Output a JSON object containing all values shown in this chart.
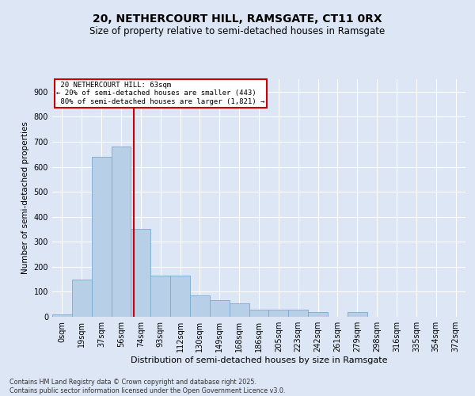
{
  "title1": "20, NETHERCOURT HILL, RAMSGATE, CT11 0RX",
  "title2": "Size of property relative to semi-detached houses in Ramsgate",
  "xlabel": "Distribution of semi-detached houses by size in Ramsgate",
  "ylabel": "Number of semi-detached properties",
  "footnote": "Contains HM Land Registry data © Crown copyright and database right 2025.\nContains public sector information licensed under the Open Government Licence v3.0.",
  "bar_labels": [
    "0sqm",
    "19sqm",
    "37sqm",
    "56sqm",
    "74sqm",
    "93sqm",
    "112sqm",
    "130sqm",
    "149sqm",
    "168sqm",
    "186sqm",
    "205sqm",
    "223sqm",
    "242sqm",
    "261sqm",
    "279sqm",
    "298sqm",
    "316sqm",
    "335sqm",
    "354sqm",
    "372sqm"
  ],
  "bar_values": [
    8,
    150,
    640,
    680,
    350,
    165,
    165,
    85,
    65,
    55,
    28,
    28,
    28,
    18,
    0,
    18,
    0,
    0,
    0,
    0,
    0
  ],
  "bar_color": "#b8cfe8",
  "bar_edge_color": "#7aaad0",
  "vline_x_index": 3.63,
  "property_label": "20 NETHERCOURT HILL: 63sqm",
  "smaller_pct": "20%",
  "smaller_count": 443,
  "larger_pct": "80%",
  "larger_count": 1821,
  "annotation_box_color": "#cc0000",
  "vline_color": "#cc0000",
  "ylim": [
    0,
    950
  ],
  "yticks": [
    0,
    100,
    200,
    300,
    400,
    500,
    600,
    700,
    800,
    900
  ],
  "background_color": "#dce6f5",
  "plot_bg_color": "#dce6f5",
  "grid_color": "#ffffff",
  "title1_fontsize": 10,
  "title2_fontsize": 8.5,
  "xlabel_fontsize": 8,
  "ylabel_fontsize": 7.5,
  "tick_fontsize": 7,
  "footnote_fontsize": 5.8
}
